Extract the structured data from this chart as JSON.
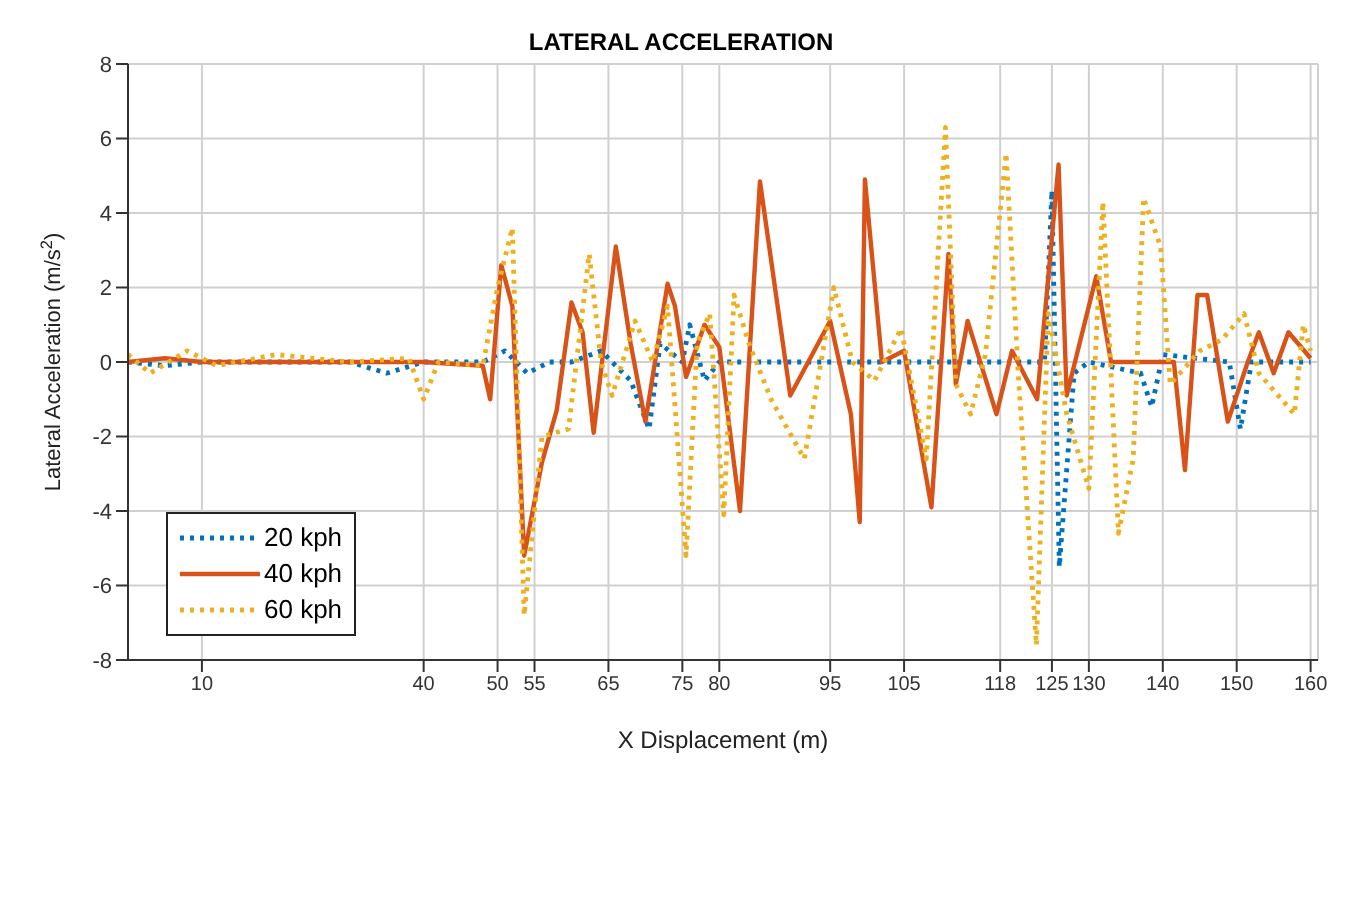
{
  "chart_data": {
    "type": "line",
    "title": "LATERAL ACCELERATION",
    "xlabel": "X Displacement (m)",
    "ylabel": "Lateral Acceleration (m/s$^{2}$)",
    "xlim": [
      0,
      161
    ],
    "xticks": [
      10,
      40,
      50,
      55,
      65,
      75,
      80,
      95,
      105,
      118,
      125,
      130,
      140,
      150,
      160
    ],
    "ylim": [
      -8,
      8
    ],
    "yticks": [
      -8,
      -6,
      -4,
      -2,
      0,
      2,
      4,
      6,
      8
    ],
    "grid": true,
    "legend": "bottom left",
    "marker": "none",
    "series": [
      {
        "name": "20 kph",
        "color": "#0072bd",
        "line_style": "dotted",
        "x": [
          0,
          5,
          10,
          20,
          30,
          35,
          40,
          48,
          51,
          54,
          57,
          60,
          64,
          68,
          70.5,
          72,
          75,
          76,
          78,
          80,
          90,
          100,
          110,
          118,
          124,
          125,
          126,
          128,
          130,
          137,
          138.5,
          140,
          149,
          150.5,
          152,
          160
        ],
        "values": [
          0,
          -0.1,
          0,
          0,
          0,
          -0.3,
          0,
          0,
          0.3,
          -0.3,
          0,
          0,
          0.3,
          -0.5,
          -1.8,
          0.5,
          0,
          1,
          -0.5,
          0,
          0,
          0,
          0,
          0,
          0,
          4.6,
          -5.5,
          -0.3,
          0,
          -0.3,
          -1.2,
          0.2,
          0,
          -1.8,
          0,
          0
        ]
      },
      {
        "name": "40 kph",
        "color": "#d95319",
        "line_style": "solid",
        "x": [
          0,
          5,
          10,
          20,
          30,
          40,
          48,
          49,
          50.5,
          52,
          53.6,
          56,
          58,
          60,
          61.5,
          63,
          66,
          68,
          70,
          73,
          74,
          75.5,
          78,
          80,
          82.8,
          85.5,
          89.6,
          95,
          97.8,
          99,
          99.7,
          102,
          105,
          108.7,
          111,
          112,
          113.6,
          117.5,
          119.6,
          123,
          125.9,
          127,
          131,
          133,
          141.5,
          143,
          144.7,
          146,
          148.8,
          151.5,
          153,
          155,
          157,
          160
        ],
        "values": [
          0,
          0.1,
          0,
          0,
          0,
          0,
          -0.1,
          -1,
          2.6,
          1.5,
          -5.2,
          -2.7,
          -1.3,
          1.6,
          0.8,
          -1.9,
          3.1,
          0.5,
          -1.6,
          2.1,
          1.5,
          -0.4,
          1,
          0.4,
          -4,
          4.85,
          -0.9,
          1.1,
          -1.4,
          -4.3,
          4.9,
          0,
          0.3,
          -3.9,
          2.9,
          -0.6,
          1.1,
          -1.4,
          0.3,
          -1,
          5.3,
          -0.9,
          2.3,
          0,
          0,
          -2.9,
          1.8,
          1.8,
          -1.6,
          0,
          0.8,
          -0.3,
          0.8,
          0.1
        ]
      },
      {
        "name": "60 kph",
        "color": "#edb120",
        "line_style": "dotted",
        "x": [
          0,
          3,
          8,
          12,
          20,
          30,
          38,
          40,
          42,
          48,
          50,
          52,
          53.6,
          56,
          59.6,
          62.4,
          64,
          65.5,
          68.6,
          71,
          73,
          75.5,
          77,
          78.7,
          80.6,
          82,
          84,
          87,
          91.5,
          95.5,
          98,
          101,
          104.6,
          108,
          110.6,
          112,
          114,
          116,
          118.8,
          120.5,
          122.9,
          124.5,
          127,
          130,
          131.9,
          134,
          136,
          137.4,
          139.7,
          141,
          145,
          148,
          151,
          153,
          157.8,
          159,
          160
        ],
        "values": [
          0.2,
          -0.3,
          0.3,
          -0.1,
          0.2,
          0,
          0.1,
          -1,
          0,
          -0.1,
          2,
          3.6,
          -6.8,
          -2,
          -1.8,
          2.9,
          0,
          -0.9,
          1.1,
          0,
          1.5,
          -5.2,
          0.5,
          1.3,
          -4.1,
          1.8,
          0.5,
          -1,
          -2.6,
          2,
          0,
          -0.5,
          0.9,
          -2.6,
          6.3,
          -0.6,
          -1.4,
          0.2,
          5.6,
          -0.5,
          -7.6,
          1.3,
          -1.4,
          -3.4,
          4.3,
          -4.6,
          -2.6,
          4.4,
          3.1,
          -0.6,
          0.3,
          0.6,
          1.3,
          -0.3,
          -1.4,
          1,
          0.3
        ]
      }
    ]
  }
}
